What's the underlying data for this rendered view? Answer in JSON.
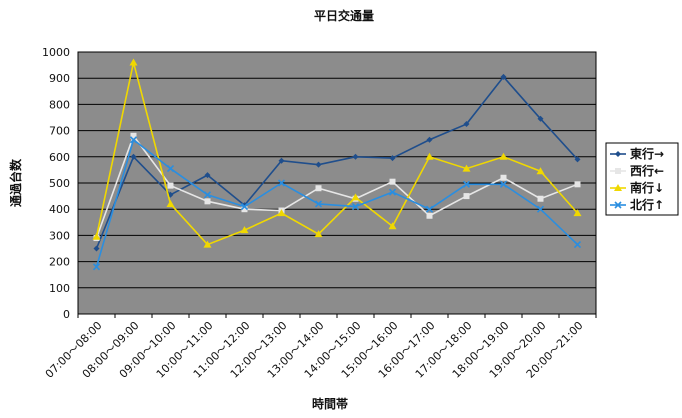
{
  "chart_data": {
    "type": "line",
    "title": "平日交通量",
    "xlabel": "時間帯",
    "ylabel": "通過台数",
    "ylim": [
      0,
      1000
    ],
    "yticks": [
      0,
      100,
      200,
      300,
      400,
      500,
      600,
      700,
      800,
      900,
      1000
    ],
    "grid": true,
    "legend_position": "right",
    "categories": [
      "07:00～08:00",
      "08:00～09:00",
      "09:00～10:00",
      "10:00～11:00",
      "11:00～12:00",
      "12:00～13:00",
      "13:00～14:00",
      "14:00～15:00",
      "15:00～16:00",
      "16:00～17:00",
      "17:00～18:00",
      "18:00～19:00",
      "19:00～20:00",
      "20:00～21:00"
    ],
    "series": [
      {
        "name": "東行→",
        "color": "#1f4e8c",
        "marker": "diamond",
        "values": [
          250,
          600,
          455,
          530,
          415,
          585,
          570,
          600,
          595,
          665,
          725,
          905,
          745,
          590
        ]
      },
      {
        "name": "西行←",
        "color": "#e6e6e6",
        "marker": "square",
        "values": [
          290,
          680,
          490,
          430,
          400,
          395,
          480,
          440,
          505,
          375,
          450,
          520,
          440,
          495
        ]
      },
      {
        "name": "南行↓",
        "color": "#f0d800",
        "marker": "triangle",
        "values": [
          295,
          960,
          420,
          265,
          320,
          385,
          305,
          445,
          335,
          600,
          555,
          600,
          545,
          385
        ]
      },
      {
        "name": "北行↑",
        "color": "#2a8ee0",
        "marker": "x",
        "values": [
          180,
          665,
          555,
          455,
          410,
          500,
          420,
          410,
          465,
          400,
          495,
          495,
          400,
          265
        ]
      }
    ]
  }
}
